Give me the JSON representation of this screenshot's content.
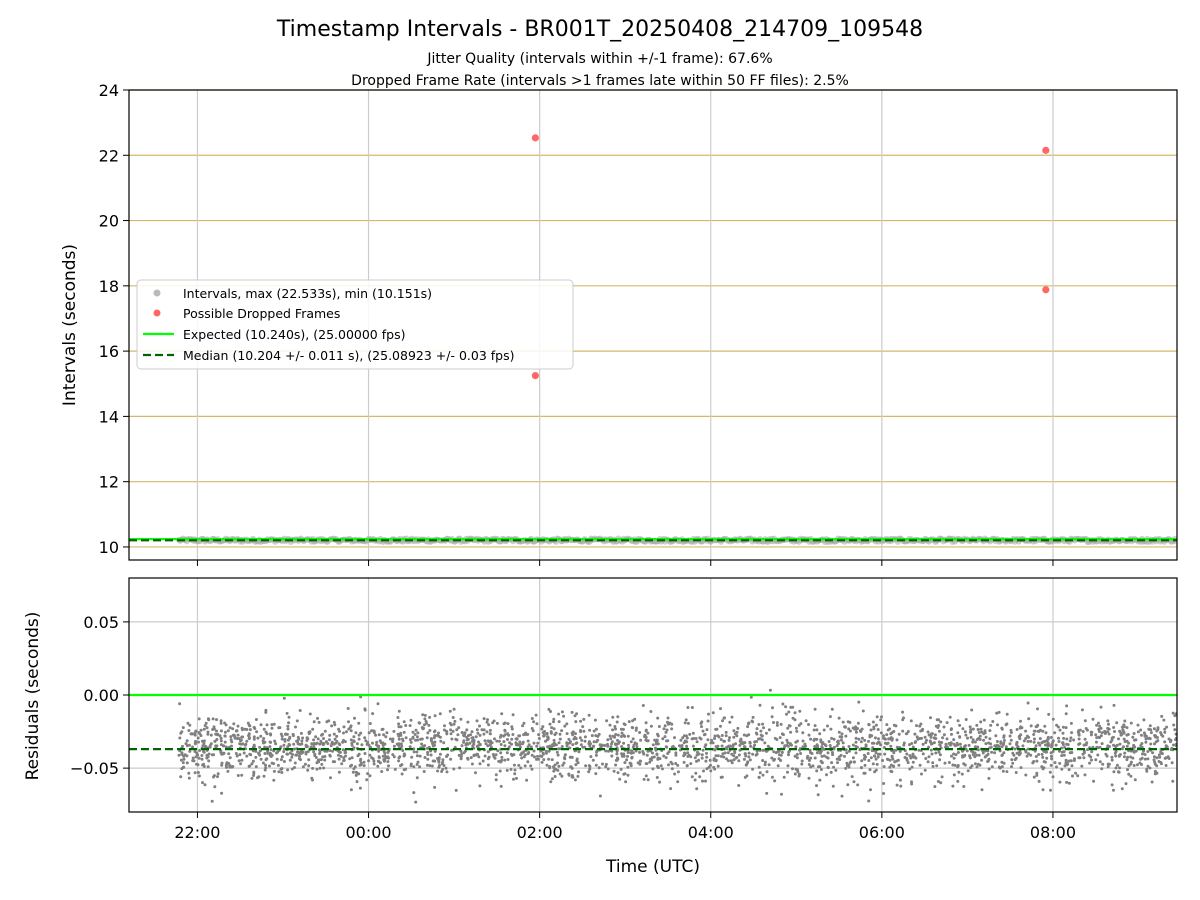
{
  "chart_data": [
    {
      "type": "scatter",
      "panel": "intervals",
      "title": "Timestamp Intervals - BR001T_20250408_214709_109548",
      "subtitle_lines": [
        "Jitter Quality (intervals within +/-1 frame): 67.6%",
        "Dropped Frame Rate (intervals >1 frames late within 50 FF files): 2.5%"
      ],
      "ylabel": "Intervals (seconds)",
      "xlim": [
        "2025-04-08T21:12",
        "2025-04-09T09:27"
      ],
      "ylim": [
        9.6,
        24
      ],
      "yticks": [
        10,
        12,
        14,
        16,
        18,
        20,
        22,
        24
      ],
      "ytick_labels": [
        "10",
        "12",
        "14",
        "16",
        "18",
        "20",
        "22",
        "24"
      ],
      "grid": true,
      "legend_position": "center-left",
      "legend": [
        "Intervals, max (22.533s), min (10.151s)",
        "Possible Dropped Frames",
        "Expected (10.240s), (25.00000 fps)",
        "Median (10.204 +/- 0.011 s), (25.08923 +/- 0.03 fps)"
      ],
      "interval_band": {
        "x_start": "2025-04-08T21:47",
        "x_end": "2025-04-09T09:27",
        "y_min": 10.151,
        "y_max": 10.26
      },
      "expected_line_y": 10.24,
      "median_line_y": 10.204,
      "dropped_frames": [
        {
          "x": "2025-04-09T01:57",
          "y": 22.533
        },
        {
          "x": "2025-04-09T01:57",
          "y": 15.25
        },
        {
          "x": "2025-04-09T07:55",
          "y": 22.15
        },
        {
          "x": "2025-04-09T07:55",
          "y": 17.88
        }
      ],
      "colors": {
        "intervals": "#a9a9a9",
        "dropped": "#ff4d4d",
        "expected": "#00ff00",
        "median": "#006400",
        "y_grid": "#d4b86a",
        "x_grid": "#cccccc"
      }
    },
    {
      "type": "scatter",
      "panel": "residuals",
      "xlabel": "Time (UTC)",
      "ylabel": "Residuals (seconds)",
      "xlim": [
        "2025-04-08T21:12",
        "2025-04-09T09:27"
      ],
      "ylim": [
        -0.08,
        0.08
      ],
      "yticks": [
        0.05,
        0.0,
        -0.05
      ],
      "ytick_labels": [
        "0.05",
        "0.00",
        "−0.05"
      ],
      "xticks": [
        "2025-04-08T22:00",
        "2025-04-09T00:00",
        "2025-04-09T02:00",
        "2025-04-09T04:00",
        "2025-04-09T06:00",
        "2025-04-09T08:00"
      ],
      "xtick_labels": [
        "22:00",
        "00:00",
        "02:00",
        "04:00",
        "06:00",
        "08:00"
      ],
      "grid": true,
      "expected_line_y": 0.0,
      "median_line_y": -0.037,
      "residual_distribution": {
        "x_start": "2025-04-08T21:47",
        "x_end": "2025-04-09T09:27",
        "center": -0.036,
        "spread": 0.011,
        "min": -0.077,
        "max": 0.024,
        "count": 2800
      },
      "colors": {
        "points": "#808080",
        "expected": "#00ff00",
        "median": "#006400",
        "grid": "#cccccc"
      }
    }
  ]
}
